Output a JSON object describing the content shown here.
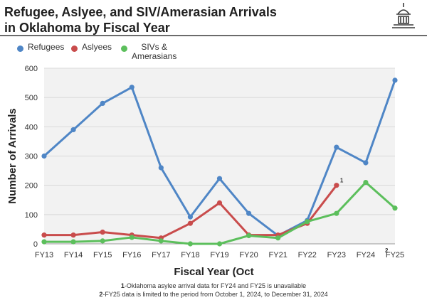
{
  "header": {
    "title_line1": "Refugee, Aslyee, and SIV/Amerasian Arrivals",
    "title_line2": "in Oklahoma by Fiscal Year",
    "logo_icon": "capitol-dome-icon"
  },
  "colors": {
    "refugees": "#4f86c6",
    "aslyees": "#c94c4c",
    "sivs": "#5cbf5c",
    "grid": "#d9d9d9",
    "plot_bg": "#f2f2f2",
    "rule": "#6b6b6b"
  },
  "footnotes": [
    {
      "marker": "1",
      "text": "-Oklahoma asylee arrival data for FY24 and FY25 is unavailable"
    },
    {
      "marker": "2",
      "text": "-FY25 data is limited to the period from October 1, 2024, to December 31, 2024"
    }
  ],
  "chart_data": {
    "type": "line",
    "title": "",
    "xlabel": "Fiscal Year (Oct",
    "ylabel": "Number of Arrivals",
    "categories": [
      "FY13",
      "FY14",
      "FY15",
      "FY16",
      "FY17",
      "FY18",
      "FY19",
      "FY20",
      "FY21",
      "FY22",
      "FY23",
      "FY24",
      "FY25"
    ],
    "ylim": [
      0,
      600
    ],
    "yticks": [
      0,
      100,
      200,
      300,
      400,
      500,
      600
    ],
    "grid": true,
    "legend_position": "top-left",
    "series": [
      {
        "name": "Refugees",
        "color": "#4f86c6",
        "values": [
          300,
          390,
          480,
          535,
          260,
          92,
          223,
          104,
          28,
          80,
          330,
          277,
          559
        ]
      },
      {
        "name": "Aslyees",
        "color": "#c94c4c",
        "values": [
          30,
          30,
          40,
          30,
          20,
          70,
          140,
          30,
          30,
          70,
          200,
          null,
          null
        ]
      },
      {
        "name": "SIVs &\nAmerasians",
        "color": "#5cbf5c",
        "values": [
          7,
          7,
          10,
          22,
          10,
          0,
          0,
          28,
          20,
          76,
          104,
          210,
          122
        ]
      }
    ],
    "annotations": [
      {
        "text": "1",
        "series": "Aslyees",
        "category": "FY23"
      },
      {
        "text": "2",
        "category": "FY25"
      }
    ]
  }
}
